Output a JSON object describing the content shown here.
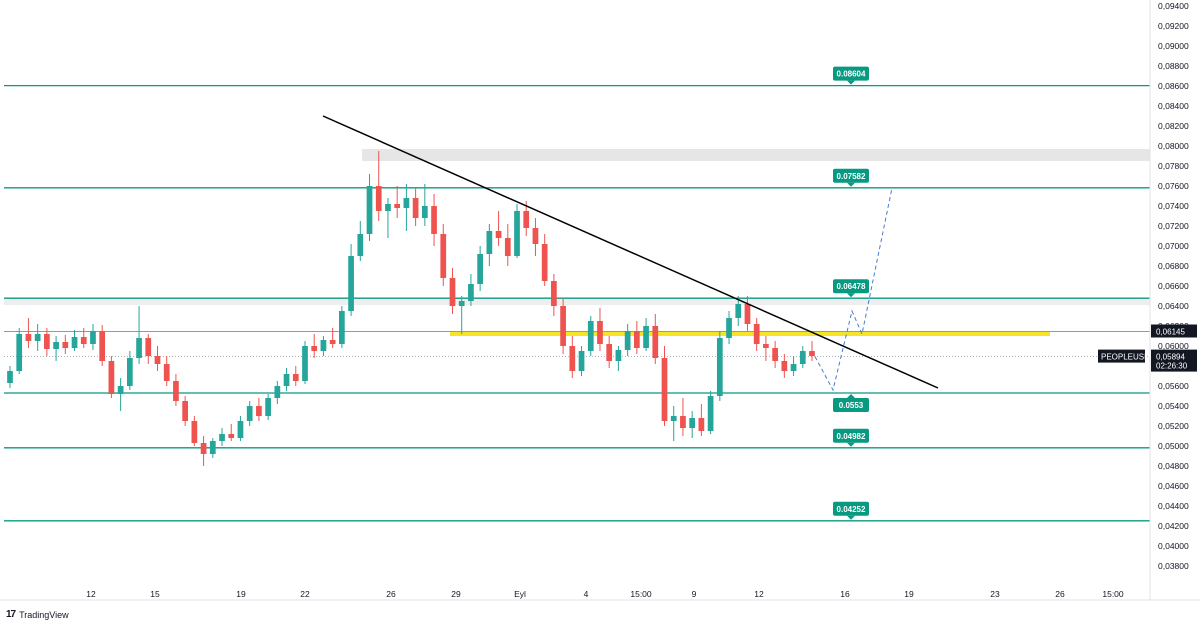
{
  "chart_data": {
    "type": "candlestick",
    "symbol": "PEOPLEUSDT.P",
    "last_price": "0,05894",
    "countdown": "02:26:30",
    "ref_price": "0,06145",
    "y_ticks": [
      "0,09400",
      "0,09200",
      "0,09000",
      "0,08800",
      "0,08600",
      "0,08400",
      "0,08200",
      "0,08000",
      "0,07800",
      "0,07600",
      "0,07400",
      "0,07200",
      "0,07000",
      "0,06800",
      "0,06600",
      "0,06400",
      "0,06200",
      "0,06000",
      "0,05800",
      "0,05600",
      "0,05400",
      "0,05200",
      "0,05000",
      "0,04800",
      "0,04600",
      "0,04400",
      "0,04200",
      "0,04000",
      "0,03800"
    ],
    "x_ticks": [
      "12",
      "15",
      "19",
      "22",
      "26",
      "29",
      "Eyl",
      "4",
      "15:00",
      "9",
      "12",
      "16",
      "19",
      "23",
      "26",
      "15:00"
    ],
    "horizontal_levels": [
      {
        "value": 0.08604,
        "label": "0.08604"
      },
      {
        "value": 0.07582,
        "label": "0.07582"
      },
      {
        "value": 0.06478,
        "label": "0.06478"
      },
      {
        "value": 0.0553,
        "label": "0.0553"
      },
      {
        "value": 0.04982,
        "label": "0.04982"
      },
      {
        "value": 0.04252,
        "label": "0.04252"
      }
    ],
    "resistance_zone": [
      0.0785,
      0.0797
    ],
    "support_zone_low": [
      0.0641,
      0.0648
    ],
    "yellow_zone": [
      0.061,
      0.0614
    ],
    "trendline": [
      {
        "t": 0,
        "p": 0.083
      },
      {
        "t": 1,
        "p": 0.0558
      }
    ],
    "projection_path": [
      0.05894,
      0.0556,
      0.0635,
      0.0612,
      0.0758
    ],
    "candles_ohlc": [
      [
        0.0563,
        0.058,
        0.0558,
        0.0575
      ],
      [
        0.0575,
        0.0618,
        0.0572,
        0.0612
      ],
      [
        0.0612,
        0.0628,
        0.0598,
        0.0605
      ],
      [
        0.0605,
        0.0622,
        0.0595,
        0.0612
      ],
      [
        0.0612,
        0.0618,
        0.059,
        0.0597
      ],
      [
        0.0597,
        0.061,
        0.0585,
        0.0604
      ],
      [
        0.0604,
        0.0611,
        0.0592,
        0.0598
      ],
      [
        0.0598,
        0.0616,
        0.0595,
        0.0609
      ],
      [
        0.0609,
        0.0618,
        0.0598,
        0.0602
      ],
      [
        0.0602,
        0.0622,
        0.0596,
        0.0615
      ],
      [
        0.0615,
        0.0621,
        0.058,
        0.0585
      ],
      [
        0.0585,
        0.059,
        0.0548,
        0.0552
      ],
      [
        0.0552,
        0.0568,
        0.0535,
        0.056
      ],
      [
        0.056,
        0.0595,
        0.0556,
        0.0588
      ],
      [
        0.0588,
        0.064,
        0.0582,
        0.0608
      ],
      [
        0.0608,
        0.0612,
        0.0582,
        0.059
      ],
      [
        0.059,
        0.06,
        0.0575,
        0.0582
      ],
      [
        0.0582,
        0.059,
        0.056,
        0.0565
      ],
      [
        0.0565,
        0.0572,
        0.054,
        0.0545
      ],
      [
        0.0545,
        0.055,
        0.052,
        0.0525
      ],
      [
        0.0525,
        0.053,
        0.05,
        0.0503
      ],
      [
        0.0503,
        0.051,
        0.048,
        0.0492
      ],
      [
        0.0492,
        0.0508,
        0.0488,
        0.0505
      ],
      [
        0.0505,
        0.0518,
        0.05,
        0.0512
      ],
      [
        0.0512,
        0.0522,
        0.0505,
        0.0508
      ],
      [
        0.0508,
        0.053,
        0.0505,
        0.0525
      ],
      [
        0.0525,
        0.0545,
        0.052,
        0.054
      ],
      [
        0.054,
        0.0548,
        0.0525,
        0.053
      ],
      [
        0.053,
        0.0552,
        0.0526,
        0.0548
      ],
      [
        0.0548,
        0.0565,
        0.0542,
        0.056
      ],
      [
        0.056,
        0.0578,
        0.0555,
        0.0572
      ],
      [
        0.0572,
        0.058,
        0.056,
        0.0565
      ],
      [
        0.0565,
        0.0605,
        0.0562,
        0.06
      ],
      [
        0.06,
        0.0612,
        0.0588,
        0.0595
      ],
      [
        0.0595,
        0.061,
        0.059,
        0.0606
      ],
      [
        0.0606,
        0.0618,
        0.0598,
        0.0602
      ],
      [
        0.0602,
        0.064,
        0.0598,
        0.0635
      ],
      [
        0.0635,
        0.0702,
        0.063,
        0.069
      ],
      [
        0.069,
        0.0725,
        0.0685,
        0.0712
      ],
      [
        0.0712,
        0.0772,
        0.0705,
        0.076
      ],
      [
        0.076,
        0.0795,
        0.0725,
        0.0735
      ],
      [
        0.0735,
        0.0748,
        0.0708,
        0.0742
      ],
      [
        0.0742,
        0.076,
        0.0728,
        0.0738
      ],
      [
        0.0738,
        0.0762,
        0.0715,
        0.0748
      ],
      [
        0.0748,
        0.0758,
        0.072,
        0.0728
      ],
      [
        0.0728,
        0.0762,
        0.072,
        0.074
      ],
      [
        0.074,
        0.0752,
        0.07,
        0.0712
      ],
      [
        0.0712,
        0.0722,
        0.066,
        0.0668
      ],
      [
        0.0668,
        0.0678,
        0.0632,
        0.064
      ],
      [
        0.064,
        0.065,
        0.0612,
        0.0645
      ],
      [
        0.0645,
        0.0672,
        0.064,
        0.0662
      ],
      [
        0.0662,
        0.07,
        0.0655,
        0.0692
      ],
      [
        0.0692,
        0.0722,
        0.068,
        0.0715
      ],
      [
        0.0715,
        0.0735,
        0.07,
        0.0708
      ],
      [
        0.0708,
        0.0722,
        0.068,
        0.069
      ],
      [
        0.069,
        0.0742,
        0.0688,
        0.0735
      ],
      [
        0.0735,
        0.0745,
        0.071,
        0.0718
      ],
      [
        0.0718,
        0.0728,
        0.069,
        0.0702
      ],
      [
        0.0702,
        0.0712,
        0.066,
        0.0665
      ],
      [
        0.0665,
        0.0672,
        0.063,
        0.064
      ],
      [
        0.064,
        0.0648,
        0.0592,
        0.06
      ],
      [
        0.06,
        0.061,
        0.0568,
        0.0575
      ],
      [
        0.0575,
        0.06,
        0.057,
        0.0595
      ],
      [
        0.0595,
        0.063,
        0.059,
        0.0625
      ],
      [
        0.0625,
        0.0638,
        0.0595,
        0.0602
      ],
      [
        0.0602,
        0.061,
        0.0578,
        0.0585
      ],
      [
        0.0585,
        0.06,
        0.0575,
        0.0596
      ],
      [
        0.0596,
        0.0622,
        0.059,
        0.0615
      ],
      [
        0.0615,
        0.0625,
        0.0592,
        0.0598
      ],
      [
        0.0598,
        0.0628,
        0.0595,
        0.062
      ],
      [
        0.062,
        0.0632,
        0.0582,
        0.0588
      ],
      [
        0.0588,
        0.06,
        0.052,
        0.0525
      ],
      [
        0.0525,
        0.054,
        0.0505,
        0.053
      ],
      [
        0.053,
        0.0548,
        0.051,
        0.0518
      ],
      [
        0.0518,
        0.0535,
        0.0508,
        0.0528
      ],
      [
        0.0528,
        0.0542,
        0.051,
        0.0515
      ],
      [
        0.0515,
        0.0555,
        0.0512,
        0.055
      ],
      [
        0.055,
        0.0615,
        0.0545,
        0.0608
      ],
      [
        0.0608,
        0.0635,
        0.0602,
        0.0628
      ],
      [
        0.0628,
        0.065,
        0.062,
        0.0642
      ],
      [
        0.0642,
        0.065,
        0.0615,
        0.0622
      ],
      [
        0.0622,
        0.0628,
        0.0595,
        0.0602
      ],
      [
        0.0602,
        0.061,
        0.0585,
        0.0598
      ],
      [
        0.0598,
        0.0605,
        0.0578,
        0.0585
      ],
      [
        0.0585,
        0.0592,
        0.0568,
        0.0575
      ],
      [
        0.0575,
        0.059,
        0.057,
        0.0582
      ],
      [
        0.0582,
        0.06,
        0.0578,
        0.0595
      ],
      [
        0.0595,
        0.0605,
        0.0585,
        0.059
      ]
    ]
  },
  "branding": {
    "name": "TradingView",
    "logo": "tv-logo-icon"
  },
  "colors": {
    "bull": "#26a69a",
    "bear": "#ef5350",
    "level_line": "#089981",
    "level_tag": "#089981",
    "trendline": "#000000",
    "projection": "#4a7bd0",
    "yellow_zone": "#f5e000",
    "grey_zone": "#e6e6e6"
  }
}
